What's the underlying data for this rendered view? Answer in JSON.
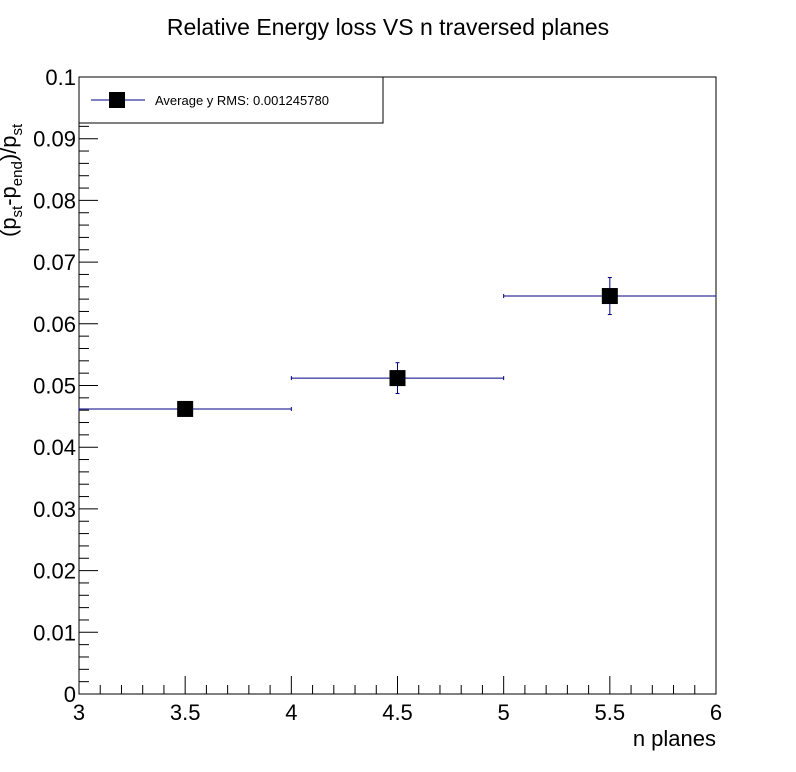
{
  "chart_data": {
    "type": "scatter",
    "title": "Relative Energy loss VS n traversed planes",
    "xlabel": "n planes",
    "ylabel": {
      "base": "(p",
      "sub1": "st",
      "mid": "-p",
      "sub2": "end",
      "end": ")/p",
      "sub3": "st"
    },
    "xlim": [
      3,
      6
    ],
    "ylim": [
      0,
      0.1
    ],
    "x_ticks": [
      "3",
      "3.5",
      "4",
      "4.5",
      "5",
      "5.5",
      "6"
    ],
    "y_ticks": [
      "0",
      "0.01",
      "0.02",
      "0.03",
      "0.04",
      "0.05",
      "0.06",
      "0.07",
      "0.08",
      "0.09",
      "0.1"
    ],
    "series": [
      {
        "name": "Average y RMS: 0.001245780",
        "marker": "square",
        "color": "#000000",
        "error_color": "#000080",
        "points": [
          {
            "x": 3.5,
            "y": 0.0462,
            "xerr": 0.5,
            "yerr": 0.0003
          },
          {
            "x": 4.5,
            "y": 0.0512,
            "xerr": 0.5,
            "yerr": 0.0025
          },
          {
            "x": 5.5,
            "y": 0.0645,
            "xerr": 0.5,
            "yerr": 0.003
          }
        ]
      }
    ],
    "legend": "top-left",
    "grid": false
  }
}
